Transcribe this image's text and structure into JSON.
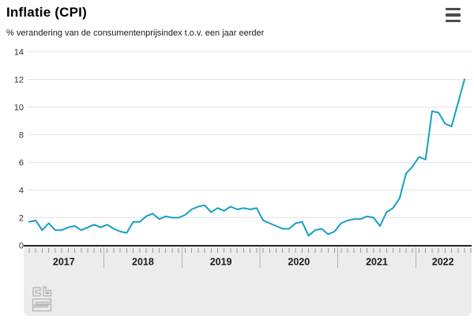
{
  "header": {
    "title": "Inflatie (CPI)",
    "subtitle": "% verandering van de consumentenprijsindex t.o.v. een jaar eerder",
    "menu_icon": "hamburger-icon"
  },
  "footer": {
    "logo_icon": "cbs-logo"
  },
  "colors": {
    "line": "#159fc4",
    "gridline": "#e4e4e4",
    "axis_line": "#262626",
    "panel_background": "#ececec",
    "month_tick": "#9a9a9a",
    "year_separator": "#b2b2b2",
    "label_text": "#333333",
    "logo_gray": "#b8b8b8"
  },
  "chart_data": {
    "type": "line",
    "title": "Inflatie (CPI)",
    "subtitle": "% verandering van de consumentenprijsindex t.o.v. een jaar eerder",
    "unit": "%",
    "grid": true,
    "legend": "none",
    "ylim": [
      0,
      14
    ],
    "y_ticks": [
      0,
      2,
      4,
      6,
      8,
      10,
      12,
      14
    ],
    "x_years": [
      "2017",
      "2018",
      "2019",
      "2020",
      "2021",
      "2022"
    ],
    "x_tick_interval": "month",
    "line_color": "#159fc4",
    "series": [
      {
        "name": "Inflatie (CPI)",
        "start": "2017-01",
        "end": "2022-08",
        "frequency": "monthly",
        "values": [
          1.7,
          1.8,
          1.1,
          1.6,
          1.1,
          1.1,
          1.3,
          1.4,
          1.1,
          1.3,
          1.5,
          1.3,
          1.5,
          1.2,
          1.0,
          0.9,
          1.7,
          1.7,
          2.1,
          2.3,
          1.9,
          2.1,
          2.0,
          2.0,
          2.2,
          2.6,
          2.8,
          2.9,
          2.4,
          2.7,
          2.5,
          2.8,
          2.6,
          2.7,
          2.6,
          2.7,
          1.8,
          1.6,
          1.4,
          1.2,
          1.2,
          1.6,
          1.7,
          0.7,
          1.1,
          1.2,
          0.8,
          1.0,
          1.6,
          1.8,
          1.9,
          1.9,
          2.1,
          2.0,
          1.4,
          2.4,
          2.7,
          3.4,
          5.2,
          5.7,
          6.4,
          6.2,
          9.7,
          9.6,
          8.8,
          8.6,
          10.3,
          12.0
        ]
      }
    ]
  }
}
